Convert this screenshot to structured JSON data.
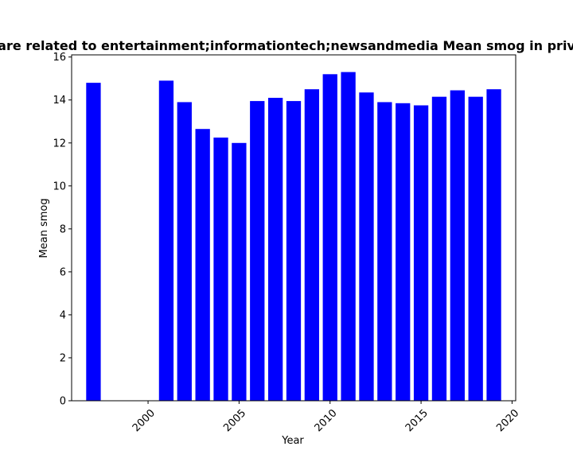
{
  "chart_data": {
    "type": "bar",
    "title": "are related to entertainment;informationtech;newsandmedia Mean smog in priv",
    "xlabel": "Year",
    "ylabel": "Mean smog",
    "x": [
      1997,
      2001,
      2002,
      2003,
      2004,
      2005,
      2006,
      2007,
      2008,
      2009,
      2010,
      2011,
      2012,
      2013,
      2014,
      2015,
      2016,
      2017,
      2018,
      2019
    ],
    "values": [
      14.8,
      14.9,
      13.9,
      12.65,
      12.25,
      12.0,
      13.95,
      14.1,
      13.95,
      14.5,
      15.2,
      15.3,
      14.35,
      13.9,
      13.85,
      13.75,
      14.15,
      14.45,
      14.15,
      14.5
    ],
    "xlim": [
      1995.8,
      2020.2
    ],
    "ylim": [
      0,
      16.1
    ],
    "xticks": [
      2000,
      2005,
      2010,
      2015,
      2020
    ],
    "xtick_labels": [
      "2000",
      "2005",
      "2010",
      "2015",
      "2020"
    ],
    "yticks": [
      0,
      2,
      4,
      6,
      8,
      10,
      12,
      14,
      16
    ],
    "ytick_labels": [
      "0",
      "2",
      "4",
      "6",
      "8",
      "10",
      "12",
      "14",
      "16"
    ],
    "bar_color": "#0000ff",
    "grid": false,
    "legend": "none"
  }
}
